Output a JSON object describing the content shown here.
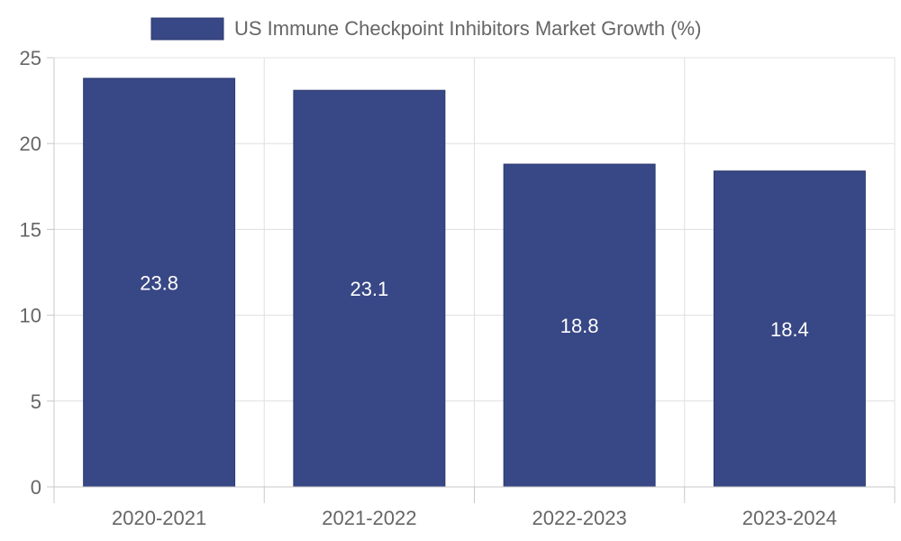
{
  "chart_data": {
    "type": "bar",
    "categories": [
      "2020-2021",
      "2021-2022",
      "2022-2023",
      "2023-2024"
    ],
    "series": [
      {
        "name": "US Immune Checkpoint Inhibitors Market Growth (%)",
        "values": [
          23.8,
          23.1,
          18.8,
          18.4
        ],
        "color": "#384785"
      }
    ],
    "ylim": [
      0,
      25
    ],
    "yticks": [
      0,
      5,
      10,
      15,
      20,
      25
    ],
    "grid": true,
    "legend": "top-center",
    "data_labels": [
      "23.8",
      "23.1",
      "18.8",
      "18.4"
    ]
  }
}
